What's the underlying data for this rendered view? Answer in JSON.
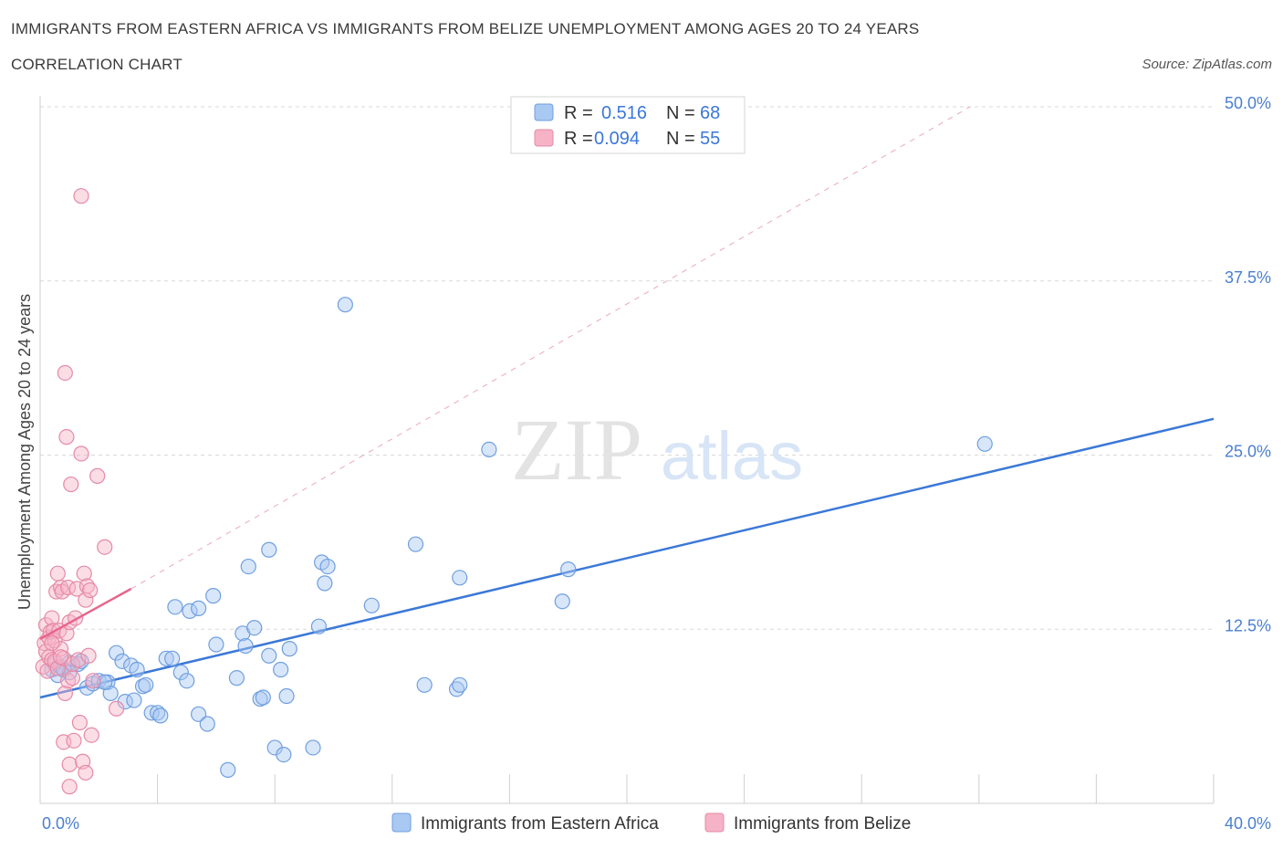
{
  "header": {
    "title": "IMMIGRANTS FROM EASTERN AFRICA VS IMMIGRANTS FROM BELIZE UNEMPLOYMENT AMONG AGES 20 TO 24 YEARS",
    "subtitle": "CORRELATION CHART",
    "source": "Source: ZipAtlas.com"
  },
  "colors": {
    "blue": "#3b78d8",
    "blue_fill": "#a9c8f2",
    "pink": "#e8658c",
    "pink_fill": "#f6b3c8",
    "grid": "#d8d8d8"
  },
  "chart_data": {
    "type": "scatter",
    "title": "IMMIGRANTS FROM EASTERN AFRICA VS IMMIGRANTS FROM BELIZE UNEMPLOYMENT AMONG AGES 20 TO 24 YEARS",
    "xlabel": "",
    "ylabel": "Unemployment Among Ages 20 to 24 years",
    "xlim": [
      0,
      40
    ],
    "ylim": [
      0,
      50
    ],
    "x_tick_labels": [
      "0.0%",
      "40.0%"
    ],
    "y_ticks": [
      12.5,
      25.0,
      37.5,
      50.0
    ],
    "y_tick_labels": [
      "12.5%",
      "25.0%",
      "37.5%",
      "50.0%"
    ],
    "watermark": {
      "zip": "ZIP",
      "atlas": "atlas"
    },
    "legend": {
      "r_label": "R =",
      "n_label": "N =",
      "entries": [
        {
          "name": "Immigrants from Eastern Africa",
          "r": "0.516",
          "n": "68"
        },
        {
          "name": "Immigrants from Belize",
          "r": "0.094",
          "n": "55"
        }
      ]
    },
    "series": [
      {
        "name": "Immigrants from Eastern Africa",
        "color": "#3b78d8",
        "trend": {
          "x": [
            0,
            40
          ],
          "y": [
            7.6,
            27.6
          ],
          "style": "solid"
        },
        "points": [
          [
            0.4,
            9.6
          ],
          [
            0.5,
            10.0
          ],
          [
            0.6,
            9.2
          ],
          [
            0.7,
            9.8
          ],
          [
            1.0,
            10.1
          ],
          [
            1.3,
            10.0
          ],
          [
            1.4,
            10.2
          ],
          [
            1.6,
            8.3
          ],
          [
            1.8,
            8.6
          ],
          [
            2.0,
            8.8
          ],
          [
            2.3,
            8.7
          ],
          [
            2.4,
            7.9
          ],
          [
            2.6,
            10.8
          ],
          [
            2.8,
            10.2
          ],
          [
            2.9,
            7.3
          ],
          [
            3.1,
            9.9
          ],
          [
            3.2,
            7.4
          ],
          [
            3.3,
            9.6
          ],
          [
            3.5,
            8.4
          ],
          [
            3.6,
            8.5
          ],
          [
            3.8,
            6.5
          ],
          [
            4.0,
            6.5
          ],
          [
            4.1,
            6.3
          ],
          [
            4.3,
            10.4
          ],
          [
            4.5,
            10.4
          ],
          [
            4.6,
            14.1
          ],
          [
            4.8,
            9.4
          ],
          [
            5.0,
            8.8
          ],
          [
            5.1,
            13.8
          ],
          [
            5.4,
            14.0
          ],
          [
            5.4,
            6.4
          ],
          [
            5.7,
            5.7
          ],
          [
            5.9,
            14.9
          ],
          [
            6.0,
            11.4
          ],
          [
            6.4,
            2.4
          ],
          [
            6.7,
            9.0
          ],
          [
            6.9,
            12.2
          ],
          [
            7.0,
            11.3
          ],
          [
            7.1,
            17.0
          ],
          [
            7.3,
            12.6
          ],
          [
            7.5,
            7.5
          ],
          [
            7.6,
            7.6
          ],
          [
            7.8,
            10.6
          ],
          [
            7.8,
            18.2
          ],
          [
            8.0,
            4.0
          ],
          [
            8.2,
            9.6
          ],
          [
            8.3,
            3.5
          ],
          [
            8.4,
            7.7
          ],
          [
            8.5,
            11.1
          ],
          [
            9.3,
            4.0
          ],
          [
            9.5,
            12.7
          ],
          [
            9.6,
            17.3
          ],
          [
            9.7,
            15.8
          ],
          [
            9.8,
            17.0
          ],
          [
            10.4,
            35.8
          ],
          [
            11.3,
            14.2
          ],
          [
            12.8,
            18.6
          ],
          [
            13.1,
            8.5
          ],
          [
            14.2,
            8.2
          ],
          [
            14.3,
            8.5
          ],
          [
            14.3,
            16.2
          ],
          [
            15.3,
            25.4
          ],
          [
            17.8,
            14.5
          ],
          [
            18.0,
            16.8
          ],
          [
            32.2,
            25.8
          ],
          [
            2.2,
            8.7
          ],
          [
            1.0,
            9.4
          ],
          [
            0.8,
            9.6
          ]
        ]
      },
      {
        "name": "Immigrants from Belize",
        "color": "#e8658c",
        "trend": {
          "x": [
            0,
            3.1
          ],
          "y": [
            11.8,
            15.4
          ],
          "style": "solid"
        },
        "trend_extended": {
          "x": [
            3.1,
            31.7
          ],
          "y": [
            15.4,
            50.0
          ],
          "style": "dashed"
        },
        "points": [
          [
            0.1,
            9.8
          ],
          [
            0.15,
            11.5
          ],
          [
            0.2,
            10.9
          ],
          [
            0.2,
            12.8
          ],
          [
            0.25,
            9.5
          ],
          [
            0.3,
            10.5
          ],
          [
            0.3,
            11.9
          ],
          [
            0.35,
            12.3
          ],
          [
            0.4,
            10.3
          ],
          [
            0.4,
            13.3
          ],
          [
            0.45,
            12.4
          ],
          [
            0.5,
            11.7
          ],
          [
            0.5,
            10.2
          ],
          [
            0.55,
            15.2
          ],
          [
            0.6,
            9.7
          ],
          [
            0.6,
            16.5
          ],
          [
            0.65,
            12.4
          ],
          [
            0.7,
            15.5
          ],
          [
            0.7,
            11.1
          ],
          [
            0.75,
            15.2
          ],
          [
            0.8,
            10.4
          ],
          [
            0.8,
            4.4
          ],
          [
            0.85,
            7.9
          ],
          [
            0.85,
            30.9
          ],
          [
            0.9,
            26.3
          ],
          [
            0.9,
            12.2
          ],
          [
            0.95,
            15.5
          ],
          [
            0.95,
            8.8
          ],
          [
            1.0,
            13.0
          ],
          [
            1.0,
            2.8
          ],
          [
            1.0,
            1.2
          ],
          [
            1.05,
            22.9
          ],
          [
            1.1,
            9.0
          ],
          [
            1.1,
            10.0
          ],
          [
            1.15,
            4.5
          ],
          [
            1.2,
            13.3
          ],
          [
            1.25,
            15.4
          ],
          [
            1.3,
            10.3
          ],
          [
            1.35,
            5.8
          ],
          [
            1.4,
            43.6
          ],
          [
            1.4,
            25.1
          ],
          [
            1.45,
            3.0
          ],
          [
            1.5,
            16.5
          ],
          [
            1.55,
            2.2
          ],
          [
            1.55,
            14.6
          ],
          [
            1.6,
            15.6
          ],
          [
            1.65,
            10.6
          ],
          [
            1.7,
            15.3
          ],
          [
            1.75,
            4.9
          ],
          [
            1.8,
            8.8
          ],
          [
            1.95,
            23.5
          ],
          [
            2.2,
            18.4
          ],
          [
            2.6,
            6.8
          ],
          [
            0.4,
            11.5
          ],
          [
            0.7,
            10.5
          ]
        ]
      }
    ]
  }
}
